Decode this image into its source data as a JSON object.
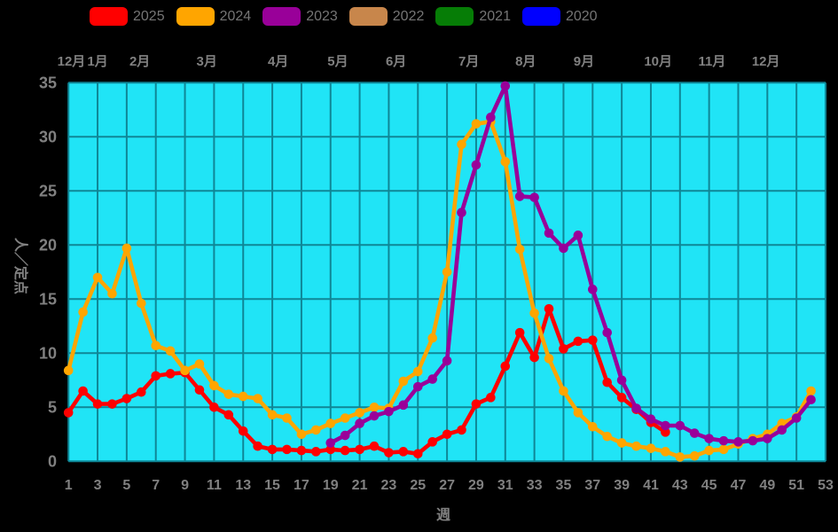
{
  "legend": {
    "items": [
      {
        "label": "2025",
        "color": "#ff0000"
      },
      {
        "label": "2024",
        "color": "#ffa500"
      },
      {
        "label": "2023",
        "color": "#990099"
      },
      {
        "label": "2022",
        "color": "#c8864b"
      },
      {
        "label": "2021",
        "color": "#067d06"
      },
      {
        "label": "2020",
        "color": "#0000ff"
      }
    ]
  },
  "y_axis": {
    "label": "人／定点",
    "ticks": [
      0,
      5,
      10,
      15,
      20,
      25,
      30,
      35
    ]
  },
  "x_axis": {
    "label": "週",
    "ticks": [
      1,
      3,
      5,
      7,
      9,
      11,
      13,
      15,
      17,
      19,
      21,
      23,
      25,
      27,
      29,
      31,
      33,
      35,
      37,
      39,
      41,
      43,
      45,
      47,
      49,
      51,
      53
    ]
  },
  "months": [
    {
      "label": "12月",
      "week": 1.2
    },
    {
      "label": "1月",
      "week": 3.0
    },
    {
      "label": "2月",
      "week": 5.9
    },
    {
      "label": "3月",
      "week": 10.5
    },
    {
      "label": "4月",
      "week": 15.4
    },
    {
      "label": "5月",
      "week": 19.5
    },
    {
      "label": "6月",
      "week": 23.5
    },
    {
      "label": "7月",
      "week": 28.5
    },
    {
      "label": "8月",
      "week": 32.4
    },
    {
      "label": "9月",
      "week": 36.4
    },
    {
      "label": "10月",
      "week": 41.5
    },
    {
      "label": "11月",
      "week": 45.2
    },
    {
      "label": "12月",
      "week": 48.9
    }
  ],
  "chart_data": {
    "type": "line",
    "title": "",
    "xlabel": "週",
    "ylabel": "人／定点",
    "x_range": [
      1,
      53
    ],
    "ylim": [
      0,
      35
    ],
    "grid": true,
    "plot_bg": "#20e4f6",
    "grid_color": "#0f8696",
    "outer_bg": "#000000",
    "legend_position": "top",
    "series": [
      {
        "name": "2025",
        "color": "#ff0000",
        "start_week": 1,
        "values": [
          4.5,
          6.5,
          5.3,
          5.3,
          5.8,
          6.4,
          7.9,
          8.1,
          8.2,
          6.6,
          5.0,
          4.3,
          2.8,
          1.4,
          1.1,
          1.1,
          1.0,
          0.9,
          1.1,
          1.0,
          1.1,
          1.4,
          0.8,
          0.9,
          0.7,
          1.8,
          2.5,
          2.9,
          5.3,
          5.9,
          8.8,
          11.9,
          9.6,
          14.1,
          10.4,
          11.1,
          11.2,
          7.3,
          5.9,
          4.8,
          3.6,
          2.7
        ]
      },
      {
        "name": "2024",
        "color": "#ffa500",
        "start_week": 1,
        "values": [
          8.4,
          13.8,
          17.0,
          15.5,
          19.7,
          14.6,
          10.7,
          10.2,
          8.4,
          9.0,
          7.0,
          6.2,
          6.0,
          5.8,
          4.3,
          4.0,
          2.5,
          2.9,
          3.5,
          4.0,
          4.5,
          5.0,
          4.9,
          7.4,
          8.3,
          11.4,
          17.5,
          29.3,
          31.2,
          31.4,
          27.7,
          19.6,
          13.7,
          9.5,
          6.5,
          4.5,
          3.2,
          2.3,
          1.7,
          1.4,
          1.2,
          0.9,
          0.4,
          0.5,
          1.0,
          1.1,
          1.6,
          2.1,
          2.5,
          3.5,
          4.1,
          6.5
        ]
      },
      {
        "name": "2023",
        "color": "#990099",
        "start_week": 19,
        "values": [
          1.7,
          2.4,
          3.5,
          4.2,
          4.6,
          5.2,
          6.9,
          7.6,
          9.3,
          23.0,
          27.4,
          31.8,
          34.7,
          24.5,
          24.4,
          21.1,
          19.7,
          20.9,
          15.9,
          11.9,
          7.5,
          4.9,
          3.9,
          3.3,
          3.3,
          2.6,
          2.1,
          1.9,
          1.8,
          1.9,
          2.1,
          2.9,
          4.0,
          5.7
        ]
      },
      {
        "name": "2022",
        "color": "#c8864b",
        "start_week": 1,
        "values": []
      },
      {
        "name": "2021",
        "color": "#067d06",
        "start_week": 1,
        "values": []
      },
      {
        "name": "2020",
        "color": "#0000ff",
        "start_week": 1,
        "values": []
      }
    ]
  }
}
